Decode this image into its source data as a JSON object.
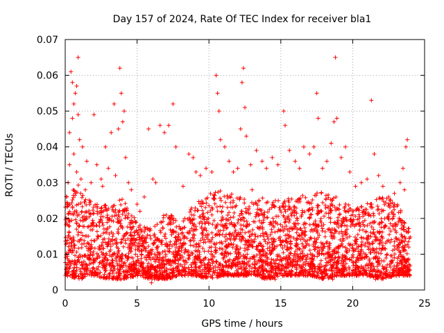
{
  "chart_data": {
    "type": "scatter",
    "title": "Day 157 of 2024, Rate Of TEC Index for receiver bla1",
    "xlabel": "GPS time / hours",
    "ylabel": "ROTI / TECUs",
    "xlim": [
      0,
      25
    ],
    "ylim": [
      0,
      0.07
    ],
    "x_ticks": [
      "0",
      "5",
      "10",
      "15",
      "20",
      "25"
    ],
    "y_ticks": [
      "0",
      "0.01",
      "0.02",
      "0.03",
      "0.04",
      "0.05",
      "0.06",
      "0.07"
    ],
    "grid": true,
    "marker": "plus",
    "color": "#ff0000",
    "series": [
      {
        "name": "ROTI",
        "points": [
          [
            0.4,
            0.061
          ],
          [
            0.5,
            0.058
          ],
          [
            0.6,
            0.052
          ],
          [
            0.8,
            0.057
          ],
          [
            0.9,
            0.065
          ],
          [
            0.9,
            0.049
          ],
          [
            0.7,
            0.055
          ],
          [
            0.3,
            0.044
          ],
          [
            0.5,
            0.048
          ],
          [
            1.0,
            0.042
          ],
          [
            1.2,
            0.04
          ],
          [
            0.6,
            0.038
          ],
          [
            0.3,
            0.035
          ],
          [
            0.8,
            0.033
          ],
          [
            1.1,
            0.031
          ],
          [
            1.5,
            0.036
          ],
          [
            1.8,
            0.03
          ],
          [
            2.0,
            0.049
          ],
          [
            2.2,
            0.035
          ],
          [
            2.5,
            0.031
          ],
          [
            2.8,
            0.04
          ],
          [
            3.0,
            0.034
          ],
          [
            3.2,
            0.044
          ],
          [
            3.4,
            0.052
          ],
          [
            3.5,
            0.032
          ],
          [
            3.7,
            0.045
          ],
          [
            3.8,
            0.062
          ],
          [
            3.9,
            0.055
          ],
          [
            4.0,
            0.047
          ],
          [
            4.1,
            0.05
          ],
          [
            4.2,
            0.037
          ],
          [
            4.4,
            0.03
          ],
          [
            4.6,
            0.028
          ],
          [
            5.0,
            0.024
          ],
          [
            5.2,
            0.022
          ],
          [
            5.5,
            0.026
          ],
          [
            5.8,
            0.045
          ],
          [
            6.1,
            0.031
          ],
          [
            6.3,
            0.03
          ],
          [
            6.6,
            0.046
          ],
          [
            6.9,
            0.044
          ],
          [
            7.2,
            0.046
          ],
          [
            7.5,
            0.052
          ],
          [
            7.7,
            0.04
          ],
          [
            8.2,
            0.029
          ],
          [
            8.6,
            0.038
          ],
          [
            8.9,
            0.037
          ],
          [
            9.1,
            0.033
          ],
          [
            9.4,
            0.032
          ],
          [
            9.8,
            0.034
          ],
          [
            10.2,
            0.033
          ],
          [
            10.5,
            0.06
          ],
          [
            10.6,
            0.055
          ],
          [
            10.7,
            0.05
          ],
          [
            10.8,
            0.042
          ],
          [
            11.1,
            0.04
          ],
          [
            11.4,
            0.036
          ],
          [
            11.7,
            0.033
          ],
          [
            12.0,
            0.034
          ],
          [
            12.2,
            0.045
          ],
          [
            12.3,
            0.058
          ],
          [
            12.4,
            0.062
          ],
          [
            12.5,
            0.051
          ],
          [
            12.6,
            0.043
          ],
          [
            12.9,
            0.035
          ],
          [
            13.3,
            0.039
          ],
          [
            13.7,
            0.036
          ],
          [
            14.0,
            0.034
          ],
          [
            14.4,
            0.037
          ],
          [
            14.8,
            0.035
          ],
          [
            15.2,
            0.05
          ],
          [
            15.3,
            0.046
          ],
          [
            15.6,
            0.039
          ],
          [
            16.0,
            0.036
          ],
          [
            16.3,
            0.034
          ],
          [
            16.6,
            0.04
          ],
          [
            17.0,
            0.038
          ],
          [
            17.3,
            0.04
          ],
          [
            17.5,
            0.055
          ],
          [
            17.6,
            0.048
          ],
          [
            17.9,
            0.034
          ],
          [
            18.2,
            0.036
          ],
          [
            18.5,
            0.041
          ],
          [
            18.7,
            0.047
          ],
          [
            18.8,
            0.065
          ],
          [
            18.9,
            0.048
          ],
          [
            19.2,
            0.037
          ],
          [
            19.5,
            0.04
          ],
          [
            19.8,
            0.033
          ],
          [
            20.2,
            0.029
          ],
          [
            20.6,
            0.03
          ],
          [
            21.0,
            0.031
          ],
          [
            21.3,
            0.053
          ],
          [
            21.5,
            0.038
          ],
          [
            21.8,
            0.032
          ],
          [
            22.1,
            0.029
          ],
          [
            22.5,
            0.026
          ],
          [
            22.9,
            0.027
          ],
          [
            23.3,
            0.03
          ],
          [
            23.5,
            0.034
          ],
          [
            23.7,
            0.04
          ],
          [
            23.8,
            0.042
          ],
          [
            23.6,
            0.028
          ],
          [
            0.2,
            0.03
          ],
          [
            0.1,
            0.026
          ],
          [
            1.4,
            0.028
          ],
          [
            2.6,
            0.029
          ],
          [
            13.0,
            0.028
          ],
          [
            0.1,
            0.005
          ],
          [
            0.5,
            0.011
          ],
          [
            1.0,
            0.018
          ],
          [
            1.3,
            0.008
          ],
          [
            1.6,
            0.013
          ],
          [
            1.9,
            0.006
          ],
          [
            2.3,
            0.015
          ],
          [
            2.7,
            0.009
          ],
          [
            3.1,
            0.02
          ],
          [
            3.6,
            0.012
          ],
          [
            4.3,
            0.016
          ],
          [
            4.8,
            0.007
          ],
          [
            5.3,
            0.01
          ],
          [
            5.9,
            0.004
          ],
          [
            6.4,
            0.014
          ],
          [
            6.8,
            0.009
          ],
          [
            7.3,
            0.019
          ],
          [
            7.9,
            0.011
          ],
          [
            8.4,
            0.006
          ],
          [
            8.8,
            0.021
          ],
          [
            9.3,
            0.013
          ],
          [
            9.7,
            0.017
          ],
          [
            10.3,
            0.008
          ],
          [
            10.9,
            0.022
          ],
          [
            11.5,
            0.014
          ],
          [
            12.1,
            0.01
          ],
          [
            12.7,
            0.018
          ],
          [
            13.2,
            0.007
          ],
          [
            13.8,
            0.015
          ],
          [
            14.3,
            0.011
          ],
          [
            14.9,
            0.023
          ],
          [
            15.5,
            0.009
          ],
          [
            16.1,
            0.016
          ],
          [
            16.7,
            0.012
          ],
          [
            17.2,
            0.006
          ],
          [
            17.8,
            0.02
          ],
          [
            18.4,
            0.013
          ],
          [
            19.0,
            0.009
          ],
          [
            19.6,
            0.017
          ],
          [
            20.1,
            0.011
          ],
          [
            20.7,
            0.019
          ],
          [
            21.2,
            0.007
          ],
          [
            21.9,
            0.014
          ],
          [
            22.4,
            0.01
          ],
          [
            22.8,
            0.018
          ],
          [
            23.4,
            0.008
          ],
          [
            23.9,
            0.012
          ],
          [
            6.0,
            0.002
          ],
          [
            7.0,
            0.003
          ],
          [
            14.6,
            0.003
          ],
          [
            18.6,
            0.003
          ],
          [
            21.6,
            0.003
          ]
        ]
      }
    ],
    "dense_band": {
      "description": "dense cloud of points roughly between these bounds, by hour",
      "hours": [
        0,
        1,
        2,
        3,
        4,
        5,
        6,
        7,
        8,
        9,
        10,
        11,
        12,
        13,
        14,
        15,
        16,
        17,
        18,
        19,
        20,
        21,
        22,
        23,
        24
      ],
      "lower": [
        0.004,
        0.003,
        0.004,
        0.003,
        0.003,
        0.004,
        0.003,
        0.003,
        0.004,
        0.004,
        0.003,
        0.004,
        0.004,
        0.004,
        0.003,
        0.004,
        0.004,
        0.004,
        0.003,
        0.004,
        0.004,
        0.004,
        0.003,
        0.004,
        0.004
      ],
      "upper": [
        0.026,
        0.03,
        0.024,
        0.024,
        0.026,
        0.019,
        0.017,
        0.022,
        0.02,
        0.024,
        0.027,
        0.028,
        0.026,
        0.025,
        0.026,
        0.025,
        0.026,
        0.027,
        0.028,
        0.026,
        0.023,
        0.025,
        0.026,
        0.025,
        0.018
      ],
      "count": 3600
    }
  }
}
